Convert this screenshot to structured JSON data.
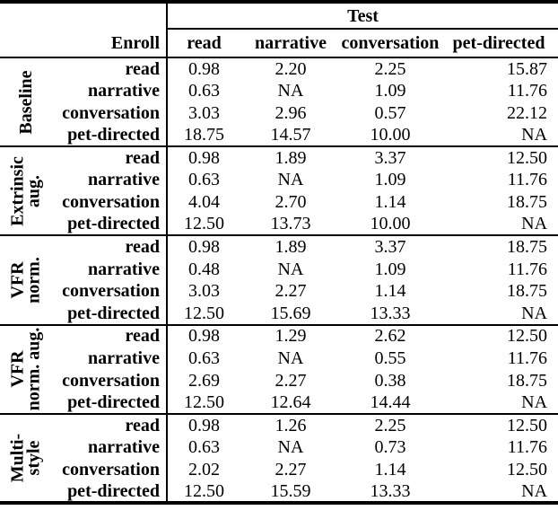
{
  "colors": {
    "text": "#000000",
    "background": "#ffffff",
    "border": "#000000"
  },
  "table": {
    "test_header": "Test",
    "enroll_header": "Enroll",
    "columns": [
      "read",
      "narrative",
      "conversation",
      "pet-directed"
    ],
    "sections": [
      {
        "name": "Baseline",
        "group_lines": [
          "Baseline"
        ],
        "rows": [
          {
            "label": "read",
            "values": [
              "0.98",
              "2.20",
              "2.25",
              "15.87"
            ]
          },
          {
            "label": "narrative",
            "values": [
              "0.63",
              "NA",
              "1.09",
              "11.76"
            ]
          },
          {
            "label": "conversation",
            "values": [
              "3.03",
              "2.96",
              "0.57",
              "22.12"
            ]
          },
          {
            "label": "pet-directed",
            "values": [
              "18.75",
              "14.57",
              "10.00",
              "NA"
            ]
          }
        ]
      },
      {
        "name": "Extrinsic aug.",
        "group_lines": [
          "Extrinsic",
          "aug."
        ],
        "rows": [
          {
            "label": "read",
            "values": [
              "0.98",
              "1.89",
              "3.37",
              "12.50"
            ]
          },
          {
            "label": "narrative",
            "values": [
              "0.63",
              "NA",
              "1.09",
              "11.76"
            ]
          },
          {
            "label": "conversation",
            "values": [
              "4.04",
              "2.70",
              "1.14",
              "18.75"
            ]
          },
          {
            "label": "pet-directed",
            "values": [
              "12.50",
              "13.73",
              "10.00",
              "NA"
            ]
          }
        ]
      },
      {
        "name": "VFR norm.",
        "group_lines": [
          "VFR",
          "norm."
        ],
        "rows": [
          {
            "label": "read",
            "values": [
              "0.98",
              "1.89",
              "3.37",
              "18.75"
            ]
          },
          {
            "label": "narrative",
            "values": [
              "0.48",
              "NA",
              "1.09",
              "11.76"
            ]
          },
          {
            "label": "conversation",
            "values": [
              "3.03",
              "2.27",
              "1.14",
              "18.75"
            ]
          },
          {
            "label": "pet-directed",
            "values": [
              "12.50",
              "15.69",
              "13.33",
              "NA"
            ]
          }
        ]
      },
      {
        "name": "VFR norm. aug.",
        "group_lines": [
          "VFR",
          "norm. aug."
        ],
        "rows": [
          {
            "label": "read",
            "values": [
              "0.98",
              "1.29",
              "2.62",
              "12.50"
            ]
          },
          {
            "label": "narrative",
            "values": [
              "0.63",
              "NA",
              "0.55",
              "11.76"
            ]
          },
          {
            "label": "conversation",
            "values": [
              "2.69",
              "2.27",
              "0.38",
              "18.75"
            ]
          },
          {
            "label": "pet-directed",
            "values": [
              "12.50",
              "12.64",
              "14.44",
              "NA"
            ]
          }
        ]
      },
      {
        "name": "Multi-style",
        "group_lines": [
          "Multi-",
          "style"
        ],
        "rows": [
          {
            "label": "read",
            "values": [
              "0.98",
              "1.26",
              "2.25",
              "12.50"
            ]
          },
          {
            "label": "narrative",
            "values": [
              "0.63",
              "NA",
              "0.73",
              "11.76"
            ]
          },
          {
            "label": "conversation",
            "values": [
              "2.02",
              "2.27",
              "1.14",
              "12.50"
            ]
          },
          {
            "label": "pet-directed",
            "values": [
              "12.50",
              "15.59",
              "13.33",
              "NA"
            ]
          }
        ]
      }
    ]
  }
}
